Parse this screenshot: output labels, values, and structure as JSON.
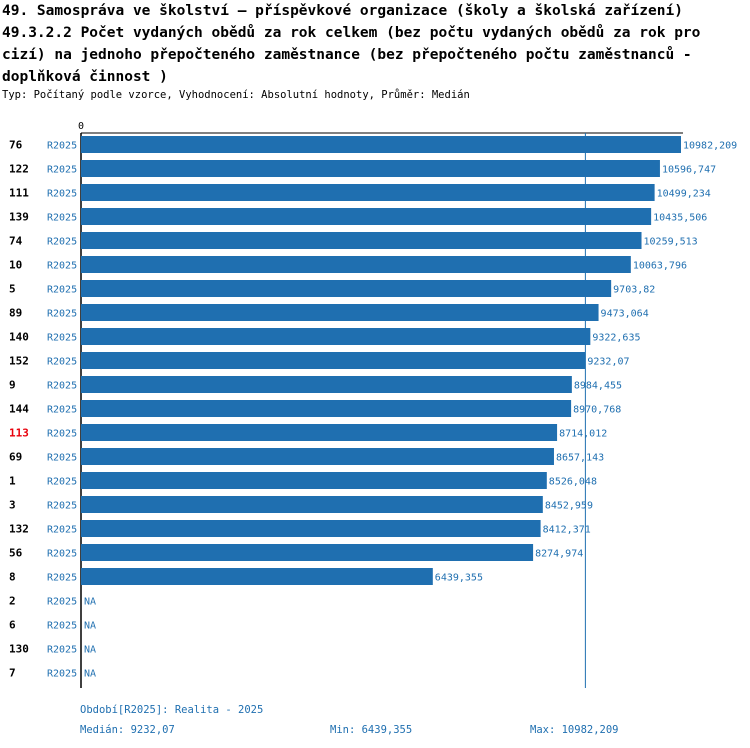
{
  "title": "49. Samospráva ve školství – příspěvkové organizace (školy a školská zařízení) 49.3.2.2 Počet vydaných obědů za rok celkem (bez počtu vydaných obědů za rok pro cizí) na jednoho přepočteného zaměstnance (bez přepočteného počtu zaměstnanců - doplňková činnost )",
  "subtitle": "Typ: Počítaný podle vzorce, Vyhodnocení: Absolutní hodnoty, Průměr: Medián",
  "colors": {
    "bar": "#1f6fb0",
    "highlight_label": "#e8000b",
    "text_blue": "#1f6fb0"
  },
  "chart_data": {
    "type": "bar",
    "orientation": "horizontal",
    "x_tick_labels": [
      "0"
    ],
    "reference_line": {
      "label": "Medián",
      "value": 9232.07
    },
    "highlighted_category": "113",
    "rows": [
      {
        "id": "76",
        "period": "R2025",
        "value": 10982.209,
        "label": "10982,209"
      },
      {
        "id": "122",
        "period": "R2025",
        "value": 10596.747,
        "label": "10596,747"
      },
      {
        "id": "111",
        "period": "R2025",
        "value": 10499.234,
        "label": "10499,234"
      },
      {
        "id": "139",
        "period": "R2025",
        "value": 10435.506,
        "label": "10435,506"
      },
      {
        "id": "74",
        "period": "R2025",
        "value": 10259.513,
        "label": "10259,513"
      },
      {
        "id": "10",
        "period": "R2025",
        "value": 10063.796,
        "label": "10063,796"
      },
      {
        "id": "5",
        "period": "R2025",
        "value": 9703.82,
        "label": "9703,82"
      },
      {
        "id": "89",
        "period": "R2025",
        "value": 9473.064,
        "label": "9473,064"
      },
      {
        "id": "140",
        "period": "R2025",
        "value": 9322.635,
        "label": "9322,635"
      },
      {
        "id": "152",
        "period": "R2025",
        "value": 9232.07,
        "label": "9232,07"
      },
      {
        "id": "9",
        "period": "R2025",
        "value": 8984.455,
        "label": "8984,455"
      },
      {
        "id": "144",
        "period": "R2025",
        "value": 8970.768,
        "label": "8970,768"
      },
      {
        "id": "113",
        "period": "R2025",
        "value": 8714.012,
        "label": "8714,012"
      },
      {
        "id": "69",
        "period": "R2025",
        "value": 8657.143,
        "label": "8657,143"
      },
      {
        "id": "1",
        "period": "R2025",
        "value": 8526.048,
        "label": "8526,048"
      },
      {
        "id": "3",
        "period": "R2025",
        "value": 8452.959,
        "label": "8452,959"
      },
      {
        "id": "132",
        "period": "R2025",
        "value": 8412.371,
        "label": "8412,371"
      },
      {
        "id": "56",
        "period": "R2025",
        "value": 8274.974,
        "label": "8274,974"
      },
      {
        "id": "8",
        "period": "R2025",
        "value": 6439.355,
        "label": "6439,355"
      },
      {
        "id": "2",
        "period": "R2025",
        "value": null,
        "label": "NA"
      },
      {
        "id": "6",
        "period": "R2025",
        "value": null,
        "label": "NA"
      },
      {
        "id": "130",
        "period": "R2025",
        "value": null,
        "label": "NA"
      },
      {
        "id": "7",
        "period": "R2025",
        "value": null,
        "label": "NA"
      }
    ]
  },
  "footer": {
    "period_legend": "Období[R2025]: Realita - 2025",
    "median": "Medián: 9232,07",
    "min": "Min: 6439,355",
    "max": "Max: 10982,209"
  }
}
